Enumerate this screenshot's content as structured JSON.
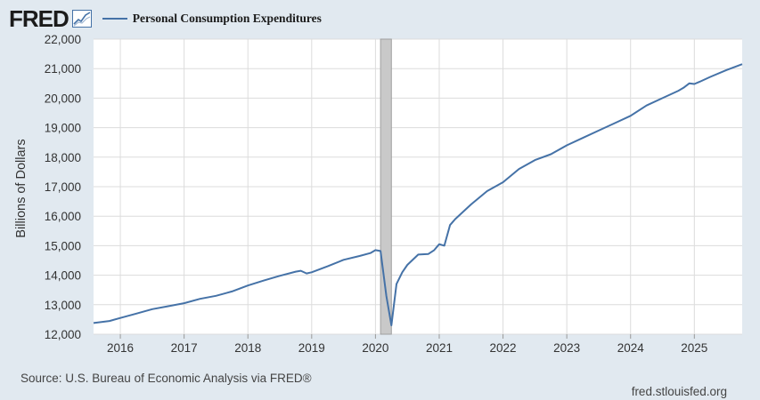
{
  "header": {
    "logo_text": "FRED",
    "logo_icon": "line-chart-icon"
  },
  "legend": {
    "label": "Personal Consumption Expenditures",
    "color": "#4572a7"
  },
  "footer": {
    "source": "Source: U.S. Bureau of Economic Analysis via FRED®",
    "site": "fred.stlouisfed.org"
  },
  "chart_data": {
    "type": "line",
    "title": "Personal Consumption Expenditures",
    "ylabel": "Billions of Dollars",
    "xlabel": "",
    "ylim": [
      12000,
      22000
    ],
    "xlim": [
      2015.58,
      2025.75
    ],
    "yticks": [
      12000,
      13000,
      14000,
      15000,
      16000,
      17000,
      18000,
      19000,
      20000,
      21000,
      22000
    ],
    "ytick_labels": [
      "12,000",
      "13,000",
      "14,000",
      "15,000",
      "16,000",
      "17,000",
      "18,000",
      "19,000",
      "20,000",
      "21,000",
      "22,000"
    ],
    "xticks": [
      2016,
      2017,
      2018,
      2019,
      2020,
      2021,
      2022,
      2023,
      2024,
      2025
    ],
    "xtick_labels": [
      "2016",
      "2017",
      "2018",
      "2019",
      "2020",
      "2021",
      "2022",
      "2023",
      "2024",
      "2025"
    ],
    "grid": true,
    "line_color": "#4572a7",
    "recession": {
      "start": 2020.08,
      "end": 2020.25,
      "color": "#c9c9c9"
    },
    "series": [
      {
        "name": "Personal Consumption Expenditures",
        "x": [
          2015.58,
          2015.83,
          2016.0,
          2016.25,
          2016.5,
          2016.75,
          2017.0,
          2017.25,
          2017.5,
          2017.75,
          2018.0,
          2018.25,
          2018.5,
          2018.75,
          2018.83,
          2018.92,
          2019.0,
          2019.25,
          2019.5,
          2019.75,
          2019.92,
          2020.0,
          2020.08,
          2020.17,
          2020.25,
          2020.33,
          2020.42,
          2020.5,
          2020.67,
          2020.83,
          2020.92,
          2021.0,
          2021.08,
          2021.17,
          2021.25,
          2021.5,
          2021.75,
          2022.0,
          2022.25,
          2022.5,
          2022.75,
          2023.0,
          2023.25,
          2023.5,
          2023.75,
          2024.0,
          2024.25,
          2024.5,
          2024.75,
          2024.83,
          2024.92,
          2025.0,
          2025.08,
          2025.25,
          2025.5,
          2025.75
        ],
        "values": [
          12380,
          12450,
          12550,
          12700,
          12850,
          12950,
          13050,
          13200,
          13300,
          13450,
          13650,
          13820,
          13980,
          14120,
          14150,
          14060,
          14100,
          14300,
          14520,
          14650,
          14750,
          14850,
          14820,
          13300,
          12300,
          13700,
          14100,
          14350,
          14700,
          14720,
          14850,
          15050,
          15000,
          15700,
          15900,
          16400,
          16850,
          17150,
          17600,
          17900,
          18100,
          18400,
          18650,
          18900,
          19150,
          19400,
          19750,
          20000,
          20250,
          20350,
          20500,
          20480,
          20550,
          20720,
          20950,
          21150
        ]
      }
    ]
  }
}
